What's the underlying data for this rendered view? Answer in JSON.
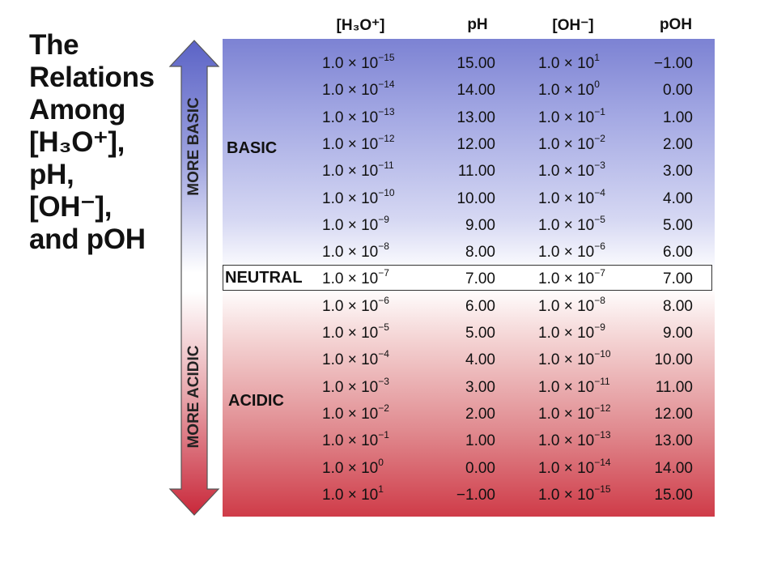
{
  "title_lines": [
    "The",
    "Relations",
    "Among",
    "[H₃O⁺],",
    "pH,",
    "[OH⁻],",
    "and pOH"
  ],
  "arrow": {
    "up_label": "MORE BASIC",
    "down_label": "MORE ACIDIC",
    "top_color": "#5b63c6",
    "bottom_color": "#c9283a"
  },
  "headers": {
    "h3o": "[H₃O⁺]",
    "ph": "pH",
    "oh": "[OH⁻]",
    "poh": "pOH"
  },
  "regions": {
    "basic": "BASIC",
    "neutral": "NEUTRAL",
    "acidic": "ACIDIC"
  },
  "rows": [
    {
      "h3o_base": "1.0 × 10",
      "h3o_exp": "−15",
      "ph": "15.00",
      "oh_base": "1.0 × 10",
      "oh_exp": "1",
      "poh": "−1.00"
    },
    {
      "h3o_base": "1.0 × 10",
      "h3o_exp": "−14",
      "ph": "14.00",
      "oh_base": "1.0 × 10",
      "oh_exp": "0",
      "poh": "0.00"
    },
    {
      "h3o_base": "1.0 × 10",
      "h3o_exp": "−13",
      "ph": "13.00",
      "oh_base": "1.0 × 10",
      "oh_exp": "−1",
      "poh": "1.00"
    },
    {
      "h3o_base": "1.0 × 10",
      "h3o_exp": "−12",
      "ph": "12.00",
      "oh_base": "1.0 × 10",
      "oh_exp": "−2",
      "poh": "2.00"
    },
    {
      "h3o_base": "1.0 × 10",
      "h3o_exp": "−11",
      "ph": "11.00",
      "oh_base": "1.0 × 10",
      "oh_exp": "−3",
      "poh": "3.00"
    },
    {
      "h3o_base": "1.0 × 10",
      "h3o_exp": "−10",
      "ph": "10.00",
      "oh_base": "1.0 × 10",
      "oh_exp": "−4",
      "poh": "4.00"
    },
    {
      "h3o_base": "1.0 × 10",
      "h3o_exp": "−9",
      "ph": "9.00",
      "oh_base": "1.0 × 10",
      "oh_exp": "−5",
      "poh": "5.00"
    },
    {
      "h3o_base": "1.0 × 10",
      "h3o_exp": "−8",
      "ph": "8.00",
      "oh_base": "1.0 × 10",
      "oh_exp": "−6",
      "poh": "6.00"
    },
    {
      "h3o_base": "1.0 × 10",
      "h3o_exp": "−7",
      "ph": "7.00",
      "oh_base": "1.0 × 10",
      "oh_exp": "−7",
      "poh": "7.00"
    },
    {
      "h3o_base": "1.0 × 10",
      "h3o_exp": "−6",
      "ph": "6.00",
      "oh_base": "1.0 × 10",
      "oh_exp": "−8",
      "poh": "8.00"
    },
    {
      "h3o_base": "1.0 × 10",
      "h3o_exp": "−5",
      "ph": "5.00",
      "oh_base": "1.0 × 10",
      "oh_exp": "−9",
      "poh": "9.00"
    },
    {
      "h3o_base": "1.0 × 10",
      "h3o_exp": "−4",
      "ph": "4.00",
      "oh_base": "1.0 × 10",
      "oh_exp": "−10",
      "poh": "10.00"
    },
    {
      "h3o_base": "1.0 × 10",
      "h3o_exp": "−3",
      "ph": "3.00",
      "oh_base": "1.0 × 10",
      "oh_exp": "−11",
      "poh": "11.00"
    },
    {
      "h3o_base": "1.0 × 10",
      "h3o_exp": "−2",
      "ph": "2.00",
      "oh_base": "1.0 × 10",
      "oh_exp": "−12",
      "poh": "12.00"
    },
    {
      "h3o_base": "1.0 × 10",
      "h3o_exp": "−1",
      "ph": "1.00",
      "oh_base": "1.0 × 10",
      "oh_exp": "−13",
      "poh": "13.00"
    },
    {
      "h3o_base": "1.0 × 10",
      "h3o_exp": "0",
      "ph": "0.00",
      "oh_base": "1.0 × 10",
      "oh_exp": "−14",
      "poh": "14.00"
    },
    {
      "h3o_base": "1.0 × 10",
      "h3o_exp": "1",
      "ph": "−1.00",
      "oh_base": "1.0 × 10",
      "oh_exp": "−15",
      "poh": "15.00"
    }
  ]
}
